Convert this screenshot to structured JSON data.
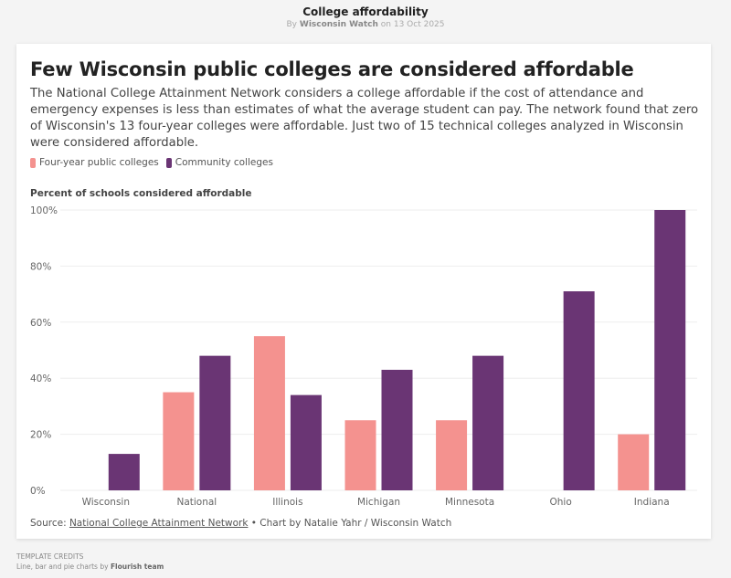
{
  "page": {
    "title": "College affordability",
    "byline_prefix": "By",
    "byline_author": "Wisconsin Watch",
    "byline_date": "on 13 Oct 2025"
  },
  "card": {
    "headline": "Few Wisconsin public colleges are considered affordable",
    "subtitle": "The National College Attainment Network considers a college affordable if the cost of attendance and emergency expenses is less than estimates of what the average student can pay. The network found that zero of Wisconsin's 13 four-year colleges were affordable. Just two of 15 technical colleges analyzed in Wisconsin were considered affordable.",
    "source_prefix": "Source:",
    "source_link": "National College Attainment Network",
    "source_suffix": "• Chart by Natalie Yahr / Wisconsin Watch"
  },
  "credits": {
    "label": "TEMPLATE CREDITS",
    "text": "Line, bar and pie charts by",
    "team": "Flourish team"
  },
  "colors": {
    "four_year": "#f4928f",
    "community": "#6a3574",
    "grid": "#eeeeee",
    "tick_text": "#666666"
  },
  "chart_data": {
    "type": "bar",
    "title": "Few Wisconsin public colleges are considered affordable",
    "ylabel": "Percent of schools considered affordable",
    "xlabel": "",
    "categories": [
      "Wisconsin",
      "National",
      "Illinois",
      "Michigan",
      "Minnesota",
      "Ohio",
      "Indiana"
    ],
    "series": [
      {
        "name": "Four-year public colleges",
        "values": [
          0,
          35,
          55,
          25,
          25,
          0,
          20
        ]
      },
      {
        "name": "Community colleges",
        "values": [
          13,
          48,
          34,
          43,
          48,
          71,
          100
        ]
      }
    ],
    "ylim": [
      0,
      100
    ],
    "yticks": [
      0,
      20,
      40,
      60,
      80,
      100
    ],
    "ytick_labels": [
      "0%",
      "20%",
      "40%",
      "60%",
      "80%",
      "100%"
    ],
    "grid": true,
    "legend_position": "top-left"
  }
}
